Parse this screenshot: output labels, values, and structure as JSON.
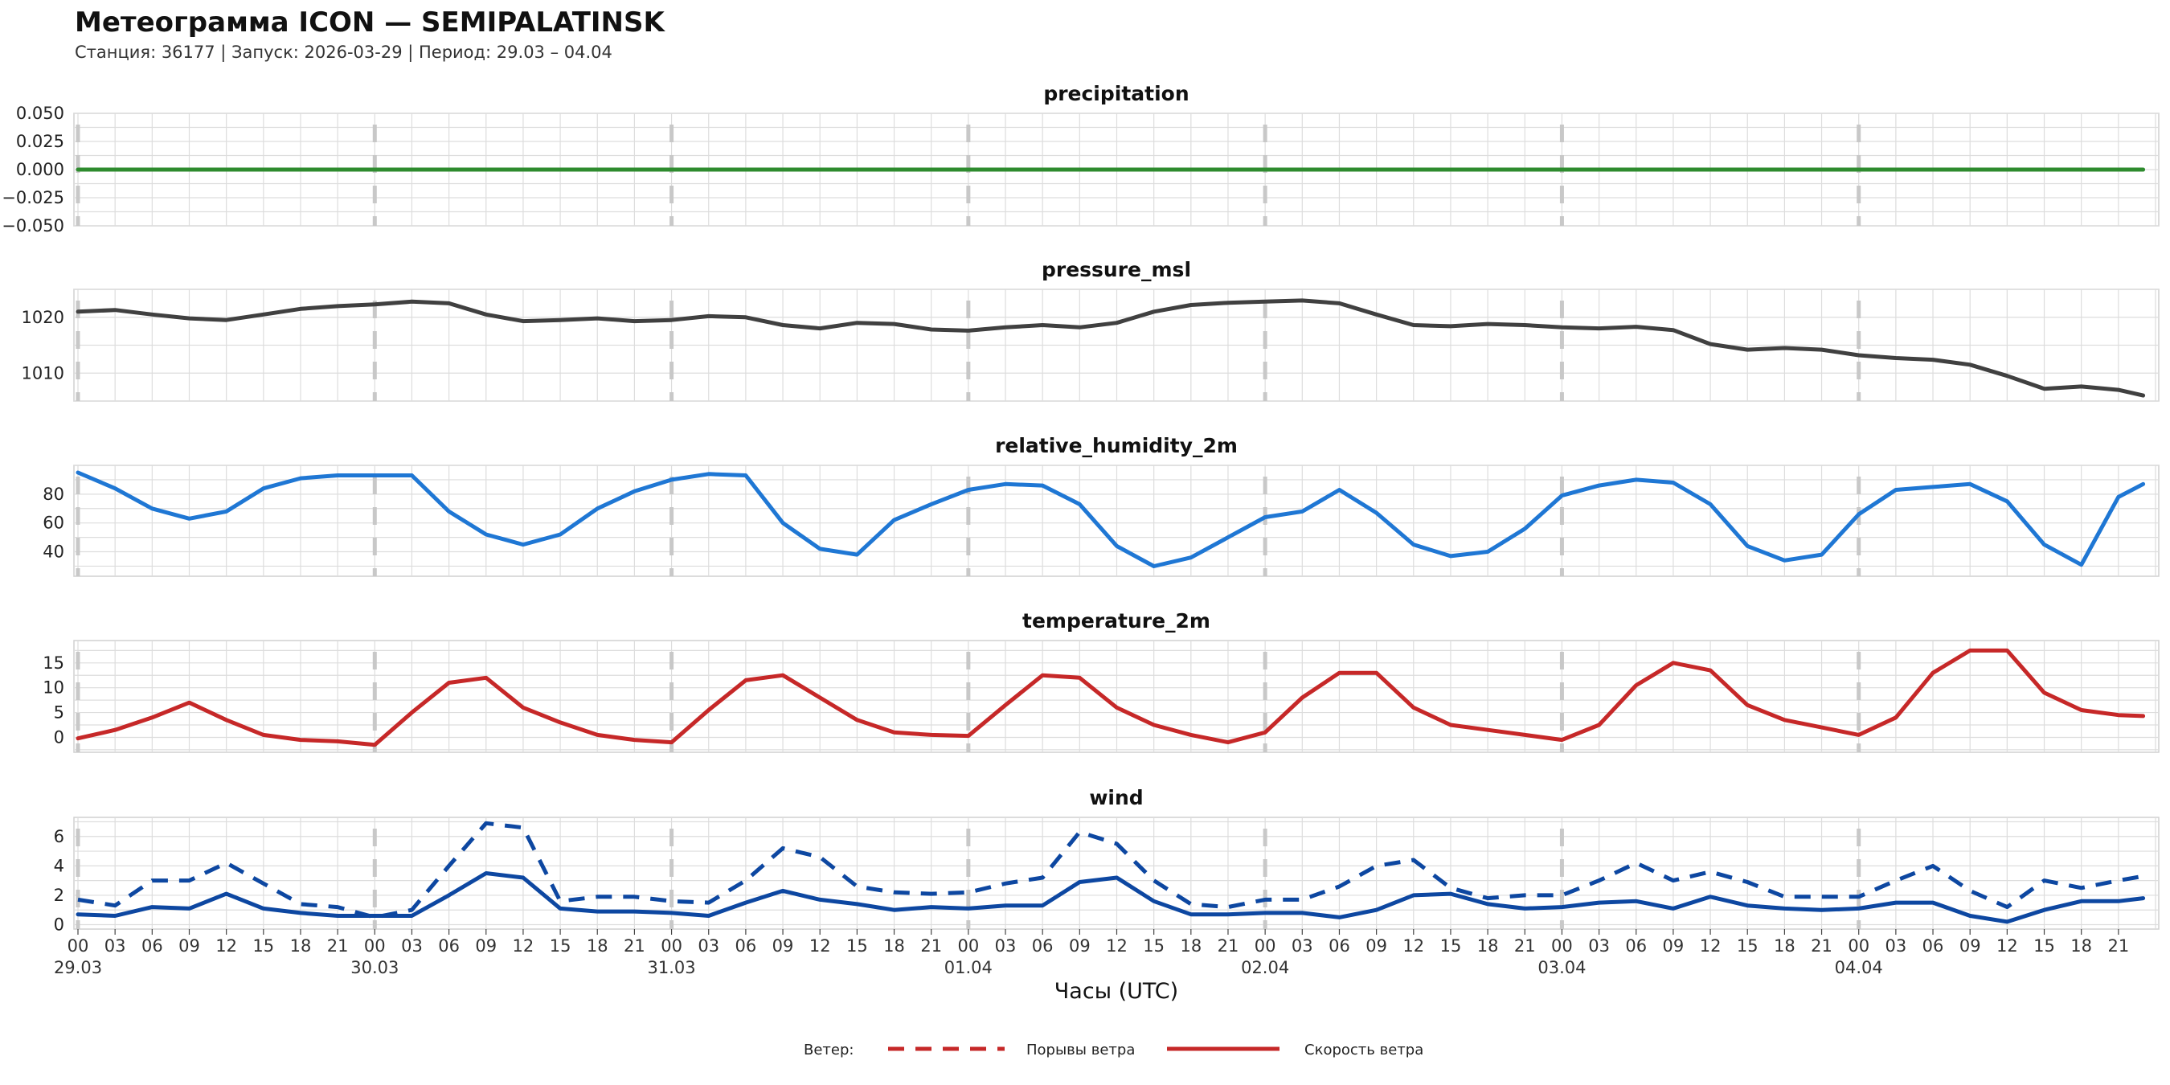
{
  "header": {
    "title": "Метеограмма ICON — SEMIPALATINSK",
    "subtitle": "Станция: 36177  | Запуск: 2026-03-29  | Период: 29.03 – 04.04"
  },
  "colors": {
    "precipitation": "#2e8b2e",
    "pressure_msl": "#404040",
    "relative_humidity_2m": "#1f77d4",
    "temperature_2m": "#c62828",
    "wind": "#0d47a1",
    "legend_lines": "#c62828",
    "grid": "#dddddd",
    "day_marker": "#c8c8c8"
  },
  "xaxis": {
    "label": "Часы (UTC)",
    "hour_ticks": [
      "00",
      "03",
      "06",
      "09",
      "12",
      "15",
      "18",
      "21",
      "00",
      "03",
      "06",
      "09",
      "12",
      "15",
      "18",
      "21",
      "00",
      "03",
      "06",
      "09",
      "12",
      "15",
      "18",
      "21",
      "00",
      "03",
      "06",
      "09",
      "12",
      "15",
      "18",
      "21",
      "00",
      "03",
      "06",
      "09",
      "12",
      "15",
      "18",
      "21",
      "00",
      "03",
      "06",
      "09",
      "12",
      "15",
      "18",
      "21",
      "00",
      "03",
      "06",
      "09",
      "12",
      "15",
      "18",
      "21"
    ],
    "day_labels": [
      "29.03",
      "30.03",
      "31.03",
      "01.04",
      "02.04",
      "03.04",
      "04.04"
    ]
  },
  "legend": {
    "title": "Ветер:",
    "items": [
      {
        "label": "Порывы ветра",
        "style": "dashed"
      },
      {
        "label": "Скорость ветра",
        "style": "solid"
      }
    ]
  },
  "chart_data": [
    {
      "type": "line",
      "title": "precipitation",
      "ylim": [
        -0.05,
        0.05
      ],
      "yticks": [
        -0.05,
        -0.025,
        0.0,
        0.025,
        0.05
      ],
      "ytick_labels": [
        "−0.050",
        "−0.025",
        "0.000",
        "0.025",
        "0.050"
      ],
      "x_hours": [
        0,
        167
      ],
      "series": [
        {
          "color_key": "precipitation",
          "style": "solid",
          "values": [
            0,
            0
          ]
        }
      ]
    },
    {
      "type": "line",
      "title": "pressure_msl",
      "ylim": [
        1005,
        1025
      ],
      "yticks": [
        1010,
        1020
      ],
      "ytick_labels": [
        "1010",
        "1020"
      ],
      "x_hours": [
        0,
        3,
        6,
        9,
        12,
        15,
        18,
        21,
        24,
        27,
        30,
        33,
        36,
        39,
        42,
        45,
        48,
        51,
        54,
        57,
        60,
        63,
        66,
        69,
        72,
        75,
        78,
        81,
        84,
        87,
        90,
        93,
        96,
        99,
        102,
        105,
        108,
        111,
        114,
        117,
        120,
        123,
        126,
        129,
        132,
        135,
        138,
        141,
        144,
        147,
        150,
        153,
        156,
        159,
        162,
        165,
        167
      ],
      "series": [
        {
          "color_key": "pressure_msl",
          "style": "solid",
          "values": [
            1021,
            1021.3,
            1020.5,
            1019.8,
            1019.5,
            1020.5,
            1021.5,
            1022,
            1022.3,
            1022.8,
            1022.5,
            1020.5,
            1019.3,
            1019.5,
            1019.8,
            1019.3,
            1019.5,
            1020.2,
            1020,
            1018.6,
            1018,
            1019,
            1018.8,
            1017.8,
            1017.6,
            1018.2,
            1018.6,
            1018.2,
            1019,
            1021,
            1022.2,
            1022.6,
            1022.8,
            1023,
            1022.5,
            1020.5,
            1018.6,
            1018.4,
            1018.8,
            1018.6,
            1018.2,
            1018,
            1018.3,
            1017.7,
            1015.2,
            1014.2,
            1014.5,
            1014.2,
            1013.2,
            1012.7,
            1012.4,
            1011.5,
            1009.5,
            1007.2,
            1007.6,
            1007,
            1006
          ]
        }
      ]
    },
    {
      "type": "line",
      "title": "relative_humidity_2m",
      "ylim": [
        23,
        100
      ],
      "yticks": [
        40,
        60,
        80
      ],
      "ytick_labels": [
        "40",
        "60",
        "80"
      ],
      "x_hours": [
        0,
        3,
        6,
        9,
        12,
        15,
        18,
        21,
        24,
        27,
        30,
        33,
        36,
        39,
        42,
        45,
        48,
        51,
        54,
        57,
        60,
        63,
        66,
        69,
        72,
        75,
        78,
        81,
        84,
        87,
        90,
        93,
        96,
        99,
        102,
        105,
        108,
        111,
        114,
        117,
        120,
        123,
        126,
        129,
        132,
        135,
        138,
        141,
        144,
        147,
        150,
        153,
        156,
        159,
        162,
        165,
        167
      ],
      "series": [
        {
          "color_key": "relative_humidity_2m",
          "style": "solid",
          "values": [
            95,
            84,
            70,
            63,
            68,
            84,
            91,
            93,
            93,
            93,
            68,
            52,
            45,
            52,
            70,
            82,
            90,
            94,
            93,
            60,
            42,
            38,
            62,
            73,
            83,
            87,
            86,
            73,
            44,
            30,
            36,
            50,
            64,
            68,
            83,
            67,
            45,
            37,
            40,
            56,
            79,
            86,
            90,
            88,
            73,
            44,
            34,
            38,
            66,
            83,
            85,
            87,
            75,
            45,
            31,
            78,
            87
          ]
        }
      ]
    },
    {
      "type": "line",
      "title": "temperature_2m",
      "ylim": [
        -3,
        19.5
      ],
      "yticks": [
        0,
        5,
        10,
        15
      ],
      "ytick_labels": [
        "0",
        "5",
        "10",
        "15"
      ],
      "x_hours": [
        0,
        3,
        6,
        9,
        12,
        15,
        18,
        21,
        24,
        27,
        30,
        33,
        36,
        39,
        42,
        45,
        48,
        51,
        54,
        57,
        60,
        63,
        66,
        69,
        72,
        75,
        78,
        81,
        84,
        87,
        90,
        93,
        96,
        99,
        102,
        105,
        108,
        111,
        114,
        117,
        120,
        123,
        126,
        129,
        132,
        135,
        138,
        141,
        144,
        147,
        150,
        153,
        156,
        159,
        162,
        165,
        167
      ],
      "series": [
        {
          "color_key": "temperature_2m",
          "style": "solid",
          "values": [
            -0.2,
            1.5,
            4,
            7,
            3.5,
            0.5,
            -0.5,
            -0.8,
            -1.5,
            5,
            11,
            12,
            6,
            3,
            0.5,
            -0.5,
            -1,
            5.5,
            11.5,
            12.5,
            8,
            3.5,
            1,
            0.5,
            0.3,
            6.5,
            12.5,
            12,
            6,
            2.5,
            0.5,
            -1,
            1,
            8,
            13,
            13,
            6,
            2.5,
            1.5,
            0.5,
            -0.5,
            2.5,
            10.5,
            15,
            13.5,
            6.5,
            3.5,
            2,
            0.5,
            4,
            13,
            17.5,
            17.5,
            9,
            5.5,
            4.5,
            4.3
          ]
        }
      ]
    },
    {
      "type": "line",
      "title": "wind",
      "ylim": [
        -0.3,
        7.3
      ],
      "yticks": [
        0,
        2,
        4,
        6
      ],
      "ytick_labels": [
        "0",
        "2",
        "4",
        "6"
      ],
      "x_hours": [
        0,
        3,
        6,
        9,
        12,
        15,
        18,
        21,
        24,
        27,
        30,
        33,
        36,
        39,
        42,
        45,
        48,
        51,
        54,
        57,
        60,
        63,
        66,
        69,
        72,
        75,
        78,
        81,
        84,
        87,
        90,
        93,
        96,
        99,
        102,
        105,
        108,
        111,
        114,
        117,
        120,
        123,
        126,
        129,
        132,
        135,
        138,
        141,
        144,
        147,
        150,
        153,
        156,
        159,
        162,
        165,
        167
      ],
      "series": [
        {
          "name": "Порывы ветра",
          "color_key": "wind",
          "style": "dashed",
          "values": [
            1.7,
            1.3,
            3,
            3,
            4.2,
            2.8,
            1.4,
            1.2,
            0.5,
            1.0,
            4,
            6.9,
            6.6,
            1.6,
            1.9,
            1.9,
            1.6,
            1.5,
            3,
            5.2,
            4.6,
            2.6,
            2.2,
            2.1,
            2.2,
            2.8,
            3.2,
            6.3,
            5.5,
            3,
            1.4,
            1.2,
            1.7,
            1.7,
            2.6,
            4,
            4.4,
            2.5,
            1.8,
            2,
            2,
            3,
            4.2,
            3,
            3.6,
            2.9,
            1.9,
            1.9,
            1.9,
            3,
            4,
            2.3,
            1.2,
            3,
            2.5,
            3,
            3.3
          ]
        },
        {
          "name": "Скорость ветра",
          "color_key": "wind",
          "style": "solid",
          "values": [
            0.7,
            0.6,
            1.2,
            1.1,
            2.1,
            1.1,
            0.8,
            0.6,
            0.6,
            0.6,
            2.0,
            3.5,
            3.2,
            1.1,
            0.9,
            0.9,
            0.8,
            0.6,
            1.5,
            2.3,
            1.7,
            1.4,
            1.0,
            1.2,
            1.1,
            1.3,
            1.3,
            2.9,
            3.2,
            1.6,
            0.7,
            0.7,
            0.8,
            0.8,
            0.5,
            1.0,
            2.0,
            2.1,
            1.4,
            1.1,
            1.2,
            1.5,
            1.6,
            1.1,
            1.9,
            1.3,
            1.1,
            1.0,
            1.1,
            1.5,
            1.5,
            0.6,
            0.2,
            1.0,
            1.6,
            1.6,
            1.8
          ]
        }
      ]
    }
  ]
}
